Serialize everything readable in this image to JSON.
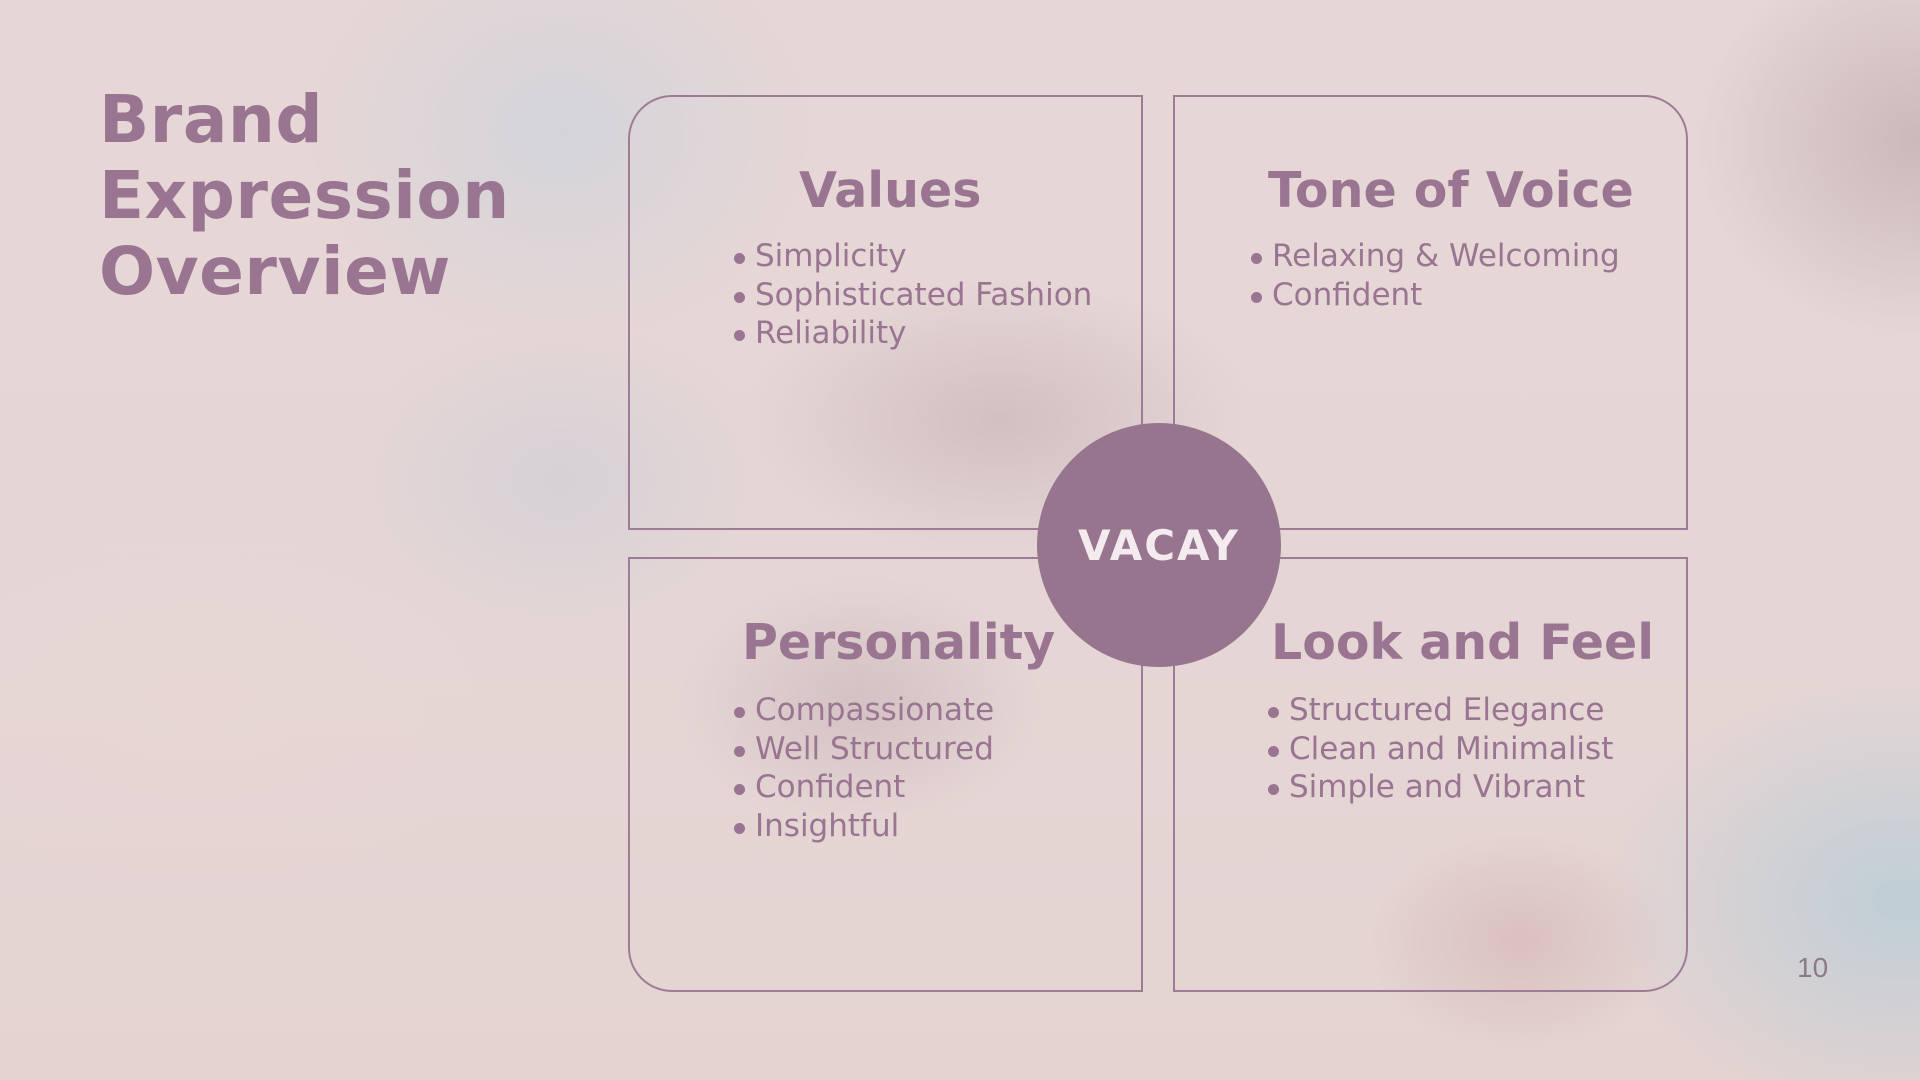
{
  "slide": {
    "title_lines": [
      "Brand",
      "Expression",
      "Overview"
    ],
    "page_number": "10"
  },
  "quadrants": [
    {
      "heading": "Values",
      "items": [
        "Simplicity",
        "Sophisticated Fashion",
        "Reliability"
      ]
    },
    {
      "heading": "Tone of Voice",
      "items": [
        "Relaxing & Welcoming",
        "Confident"
      ]
    },
    {
      "heading": "Personality",
      "items": [
        "Compassionate",
        "Well Structured",
        "Confident",
        "Insightful"
      ]
    },
    {
      "heading": "Look and Feel",
      "items": [
        "Structured Elegance",
        "Clean and Minimalist",
        "Simple and Vibrant"
      ]
    }
  ],
  "center": {
    "label": "VACAY"
  },
  "colors": {
    "accent": "#9a7592",
    "circle": "#98758f",
    "background": "#e6d6d6"
  }
}
